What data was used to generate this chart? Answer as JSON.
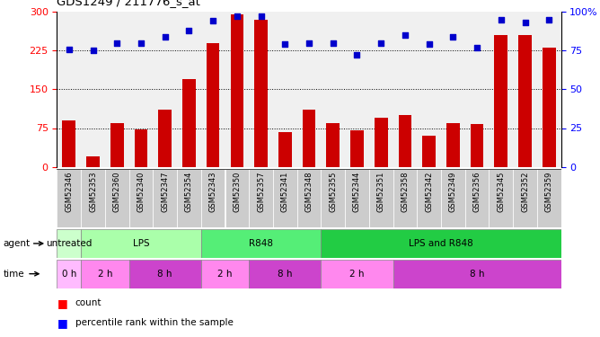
{
  "title": "GDS1249 / 211776_s_at",
  "samples": [
    "GSM52346",
    "GSM52353",
    "GSM52360",
    "GSM52340",
    "GSM52347",
    "GSM52354",
    "GSM52343",
    "GSM52350",
    "GSM52357",
    "GSM52341",
    "GSM52348",
    "GSM52355",
    "GSM52344",
    "GSM52351",
    "GSM52358",
    "GSM52342",
    "GSM52349",
    "GSM52356",
    "GSM52345",
    "GSM52352",
    "GSM52359"
  ],
  "counts": [
    90,
    20,
    85,
    72,
    110,
    170,
    240,
    295,
    285,
    68,
    110,
    85,
    70,
    95,
    100,
    60,
    85,
    82,
    255,
    255,
    230
  ],
  "percentiles": [
    76,
    75,
    80,
    80,
    84,
    88,
    94,
    97,
    97,
    79,
    80,
    80,
    72,
    80,
    85,
    79,
    84,
    77,
    95,
    93,
    95
  ],
  "agent_groups": [
    {
      "label": "untreated",
      "start": 0,
      "end": 1
    },
    {
      "label": "LPS",
      "start": 1,
      "end": 6
    },
    {
      "label": "R848",
      "start": 6,
      "end": 11
    },
    {
      "label": "LPS and R848",
      "start": 11,
      "end": 21
    }
  ],
  "agent_colors": [
    "#ccffcc",
    "#aaffaa",
    "#55ee77",
    "#22cc44"
  ],
  "time_groups": [
    {
      "label": "0 h",
      "start": 0,
      "end": 1
    },
    {
      "label": "2 h",
      "start": 1,
      "end": 3
    },
    {
      "label": "8 h",
      "start": 3,
      "end": 6
    },
    {
      "label": "2 h",
      "start": 6,
      "end": 8
    },
    {
      "label": "8 h",
      "start": 8,
      "end": 11
    },
    {
      "label": "2 h",
      "start": 11,
      "end": 14
    },
    {
      "label": "8 h",
      "start": 14,
      "end": 21
    }
  ],
  "time_color_2h": "#ff88ee",
  "time_color_8h": "#cc44cc",
  "time_color_0h": "#ffbbff",
  "ylim_left": [
    0,
    300
  ],
  "ylim_right": [
    0,
    100
  ],
  "yticks_left": [
    0,
    75,
    150,
    225,
    300
  ],
  "yticks_right": [
    0,
    25,
    50,
    75,
    100
  ],
  "ytick_labels_right": [
    "0",
    "25",
    "50",
    "75",
    "100%"
  ],
  "bar_color": "#cc0000",
  "dot_color": "#0000cc",
  "plot_bg_color": "#f0f0f0"
}
